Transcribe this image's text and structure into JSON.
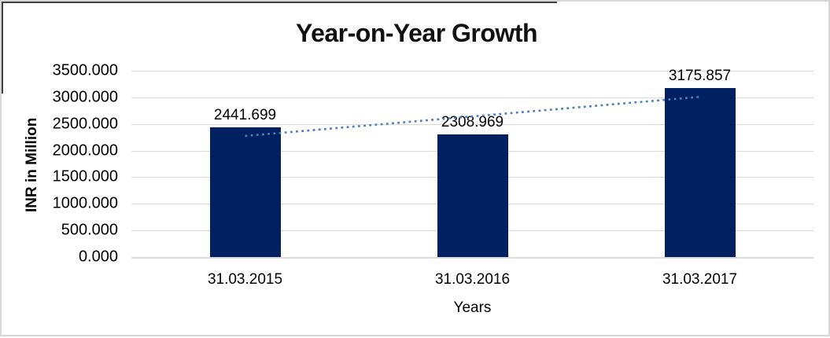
{
  "chart_data": {
    "type": "bar",
    "title": "Year-on-Year Growth",
    "xlabel": "Years",
    "ylabel": "INR in Million",
    "categories": [
      "31.03.2015",
      "31.03.2016",
      "31.03.2017"
    ],
    "values": [
      2441.699,
      2308.969,
      3175.857
    ],
    "value_labels": [
      "2441.699",
      "2308.969",
      "3175.857"
    ],
    "yticks": [
      "3500.000",
      "3000.000",
      "2500.000",
      "2000.000",
      "1500.000",
      "1000.000",
      "500.000",
      "0.000"
    ],
    "ylim": [
      0,
      3500
    ],
    "ytick_step": 500,
    "grid": true,
    "legend": "none",
    "bar_color": "#002060",
    "gridline_color": "#d9d9d9",
    "trendline": {
      "type": "linear",
      "style": "dotted",
      "color": "#4a7ebc"
    }
  }
}
